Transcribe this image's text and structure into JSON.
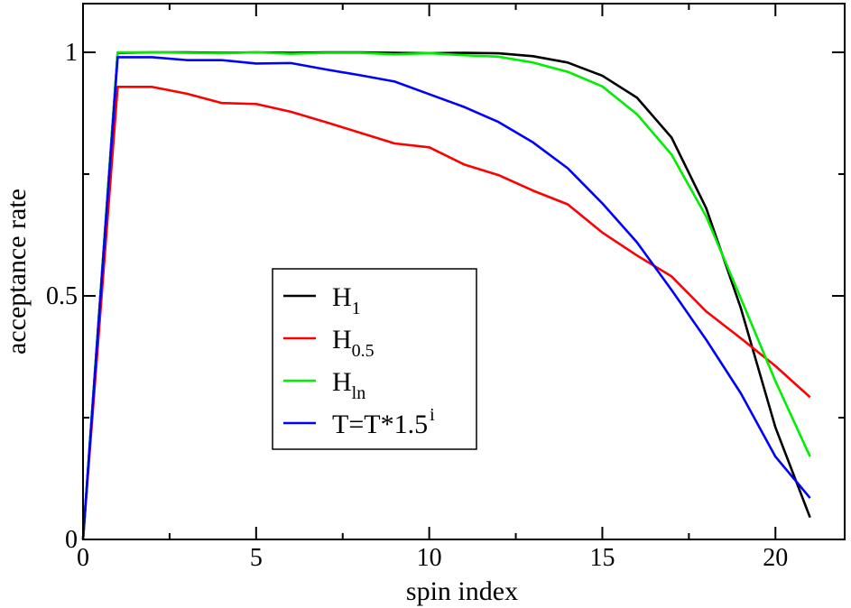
{
  "chart_data": {
    "type": "line",
    "xlabel": "spin index",
    "ylabel": "acceptance rate",
    "xlim": [
      0,
      22
    ],
    "ylim": [
      0,
      1.1
    ],
    "x_ticks": [
      0,
      5,
      10,
      15,
      20
    ],
    "x_tick_labels": [
      "0",
      "5",
      "10",
      "15",
      "20"
    ],
    "y_ticks": [
      0,
      0.5,
      1
    ],
    "y_tick_labels": [
      "0",
      "0.5",
      "1"
    ],
    "grid": false,
    "legend_position": "center-left",
    "x": [
      0,
      1,
      2,
      3,
      4,
      5,
      6,
      7,
      8,
      9,
      10,
      11,
      12,
      13,
      14,
      15,
      16,
      17,
      18,
      19,
      20,
      21
    ],
    "series": [
      {
        "name": "H",
        "subscript": "1",
        "superscript": "",
        "color": "#000000",
        "values": [
          0,
          0.999,
          1.0,
          1.0,
          0.999,
          1.0,
          0.999,
          1.0,
          1.0,
          0.999,
          0.998,
          0.999,
          0.998,
          0.992,
          0.979,
          0.952,
          0.907,
          0.825,
          0.68,
          0.475,
          0.23,
          0.045
        ]
      },
      {
        "name": "H",
        "subscript": "0.5",
        "superscript": "",
        "color": "#ff0000",
        "values": [
          0,
          0.929,
          0.929,
          0.915,
          0.896,
          0.894,
          0.878,
          0.857,
          0.835,
          0.813,
          0.805,
          0.77,
          0.748,
          0.716,
          0.688,
          0.63,
          0.583,
          0.54,
          0.468,
          0.413,
          0.356,
          0.292
        ]
      },
      {
        "name": "H",
        "subscript": "ln",
        "superscript": "",
        "color": "#00ee00",
        "values": [
          0,
          1.0,
          1.0,
          0.999,
          0.998,
          1.0,
          0.997,
          0.999,
          0.999,
          0.996,
          0.998,
          0.994,
          0.991,
          0.979,
          0.96,
          0.93,
          0.873,
          0.79,
          0.663,
          0.495,
          0.325,
          0.17
        ]
      },
      {
        "name": "T=T*1.5",
        "subscript": "",
        "superscript": "i",
        "color": "#0000ff",
        "values": [
          0,
          0.99,
          0.99,
          0.984,
          0.984,
          0.977,
          0.978,
          0.965,
          0.953,
          0.94,
          0.914,
          0.888,
          0.857,
          0.815,
          0.762,
          0.69,
          0.61,
          0.512,
          0.41,
          0.3,
          0.17,
          0.085
        ]
      }
    ]
  }
}
